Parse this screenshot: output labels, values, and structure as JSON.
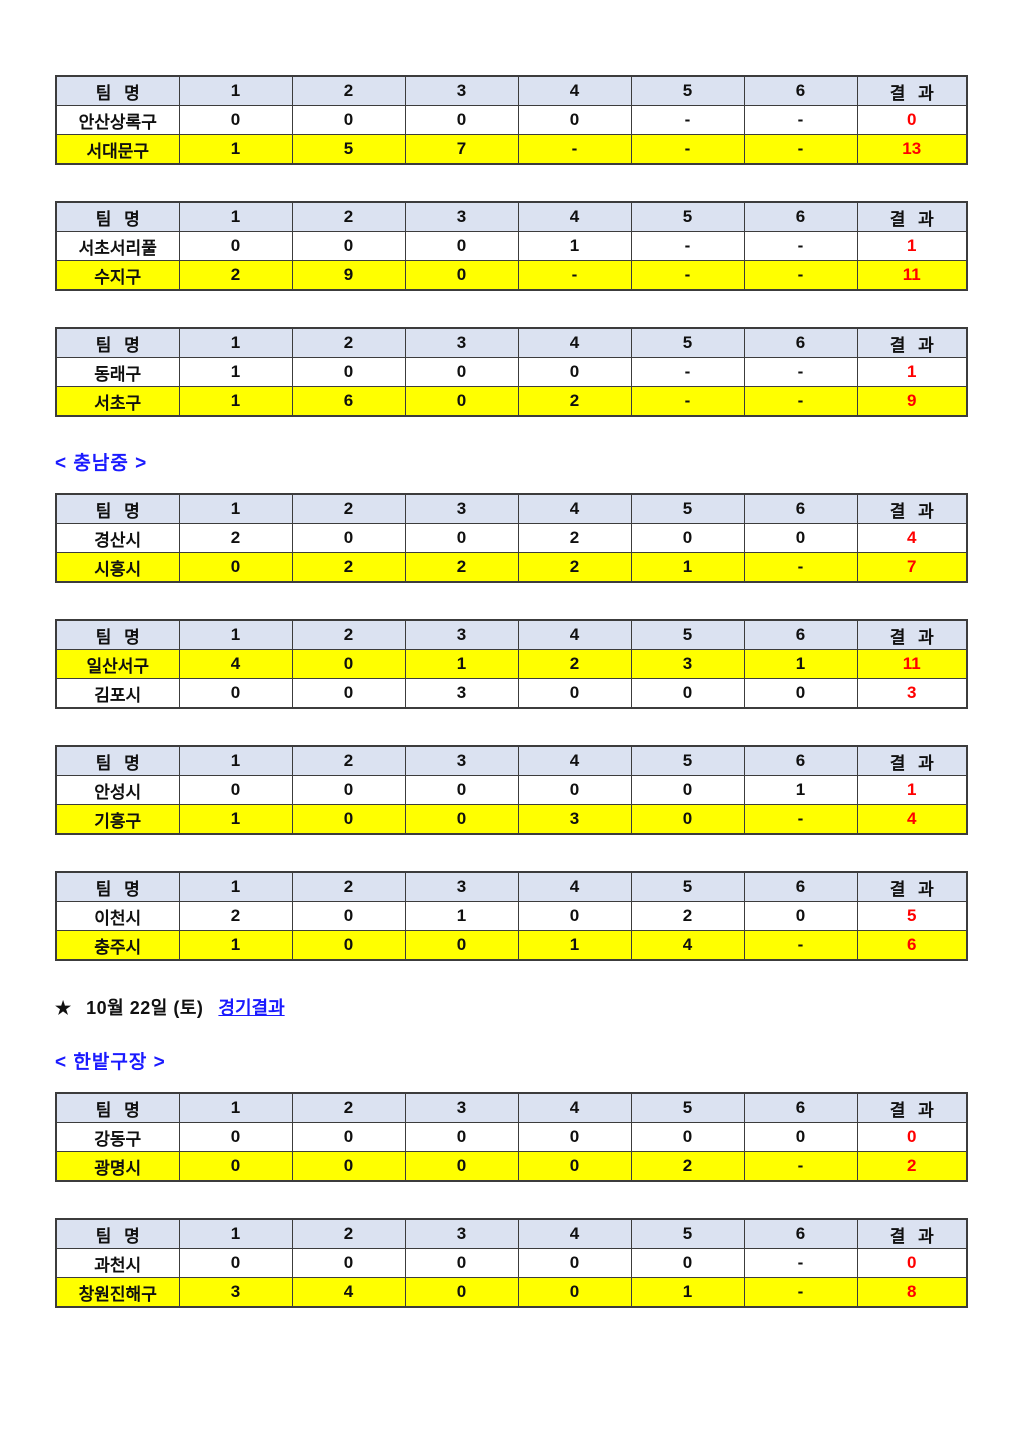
{
  "colors": {
    "header_bg": "#dbe2f1",
    "highlight_bg": "#ffff00",
    "result_color": "#ff0000",
    "heading_color": "#1a1aff",
    "link_color": "#1a1aff",
    "border_color": "#3c3c3c"
  },
  "table": {
    "header_labels": [
      "팀 명",
      "1",
      "2",
      "3",
      "4",
      "5",
      "6",
      "결 과"
    ]
  },
  "blocks": [
    {
      "type": "table",
      "rows": [
        {
          "team": "안산상록구",
          "scores": [
            "0",
            "0",
            "0",
            "0",
            "-",
            "-"
          ],
          "result": "0",
          "highlight": false
        },
        {
          "team": "서대문구",
          "scores": [
            "1",
            "5",
            "7",
            "-",
            "-",
            "-"
          ],
          "result": "13",
          "highlight": true
        }
      ]
    },
    {
      "type": "table",
      "rows": [
        {
          "team": "서초서리풀",
          "scores": [
            "0",
            "0",
            "0",
            "1",
            "-",
            "-"
          ],
          "result": "1",
          "highlight": false
        },
        {
          "team": "수지구",
          "scores": [
            "2",
            "9",
            "0",
            "-",
            "-",
            "-"
          ],
          "result": "11",
          "highlight": true
        }
      ]
    },
    {
      "type": "table",
      "rows": [
        {
          "team": "동래구",
          "scores": [
            "1",
            "0",
            "0",
            "0",
            "-",
            "-"
          ],
          "result": "1",
          "highlight": false
        },
        {
          "team": "서초구",
          "scores": [
            "1",
            "6",
            "0",
            "2",
            "-",
            "-"
          ],
          "result": "9",
          "highlight": true
        }
      ]
    },
    {
      "type": "heading",
      "text": "< 충남중 >"
    },
    {
      "type": "table",
      "rows": [
        {
          "team": "경산시",
          "scores": [
            "2",
            "0",
            "0",
            "2",
            "0",
            "0"
          ],
          "result": "4",
          "highlight": false
        },
        {
          "team": "시흥시",
          "scores": [
            "0",
            "2",
            "2",
            "2",
            "1",
            "-"
          ],
          "result": "7",
          "highlight": true
        }
      ]
    },
    {
      "type": "table",
      "rows": [
        {
          "team": "일산서구",
          "scores": [
            "4",
            "0",
            "1",
            "2",
            "3",
            "1"
          ],
          "result": "11",
          "highlight": true
        },
        {
          "team": "김포시",
          "scores": [
            "0",
            "0",
            "3",
            "0",
            "0",
            "0"
          ],
          "result": "3",
          "highlight": false
        }
      ]
    },
    {
      "type": "table",
      "rows": [
        {
          "team": "안성시",
          "scores": [
            "0",
            "0",
            "0",
            "0",
            "0",
            "1"
          ],
          "result": "1",
          "highlight": false
        },
        {
          "team": "기흥구",
          "scores": [
            "1",
            "0",
            "0",
            "3",
            "0",
            "-"
          ],
          "result": "4",
          "highlight": true
        }
      ]
    },
    {
      "type": "table",
      "rows": [
        {
          "team": "이천시",
          "scores": [
            "2",
            "0",
            "1",
            "0",
            "2",
            "0"
          ],
          "result": "5",
          "highlight": false
        },
        {
          "team": "충주시",
          "scores": [
            "1",
            "0",
            "0",
            "1",
            "4",
            "-"
          ],
          "result": "6",
          "highlight": true
        }
      ]
    },
    {
      "type": "dateline",
      "star": "★",
      "text": "10월 22일 (토)",
      "link": "경기결과"
    },
    {
      "type": "heading",
      "text": "< 한밭구장 >"
    },
    {
      "type": "table",
      "rows": [
        {
          "team": "강동구",
          "scores": [
            "0",
            "0",
            "0",
            "0",
            "0",
            "0"
          ],
          "result": "0",
          "highlight": false
        },
        {
          "team": "광명시",
          "scores": [
            "0",
            "0",
            "0",
            "0",
            "2",
            "-"
          ],
          "result": "2",
          "highlight": true
        }
      ]
    },
    {
      "type": "table",
      "rows": [
        {
          "team": "과천시",
          "scores": [
            "0",
            "0",
            "0",
            "0",
            "0",
            "-"
          ],
          "result": "0",
          "highlight": false
        },
        {
          "team": "창원진해구",
          "scores": [
            "3",
            "4",
            "0",
            "0",
            "1",
            "-"
          ],
          "result": "8",
          "highlight": true
        }
      ]
    }
  ]
}
